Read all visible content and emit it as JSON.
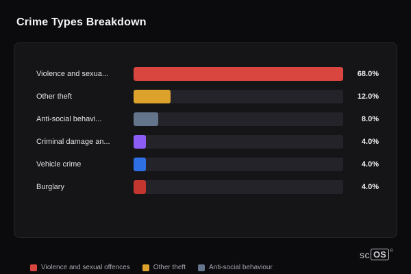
{
  "title": "Crime Types Breakdown",
  "chart_data": {
    "type": "bar",
    "orientation": "horizontal",
    "title": "Crime Types Breakdown",
    "categories": [
      "Violence and sexua...",
      "Other theft",
      "Anti-social behavi...",
      "Criminal damage an...",
      "Vehicle crime",
      "Burglary"
    ],
    "values": [
      68.0,
      12.0,
      8.0,
      4.0,
      4.0,
      4.0
    ],
    "value_labels": [
      "68.0%",
      "12.0%",
      "8.0%",
      "4.0%",
      "4.0%",
      "4.0%"
    ],
    "bar_colors": [
      "#d9453f",
      "#dda22b",
      "#64748b",
      "#8b5cf6",
      "#2f6fe4",
      "#c2362f"
    ],
    "max_value": 68.0,
    "grid": false,
    "legend_position": "bottom",
    "legend": [
      {
        "label": "Violence and sexual offences",
        "color": "#d9453f"
      },
      {
        "label": "Other theft",
        "color": "#dda22b"
      },
      {
        "label": "Anti-social behaviour",
        "color": "#64748b"
      }
    ]
  },
  "branding": {
    "prefix": "sc",
    "box": "OS",
    "reg": "®"
  }
}
